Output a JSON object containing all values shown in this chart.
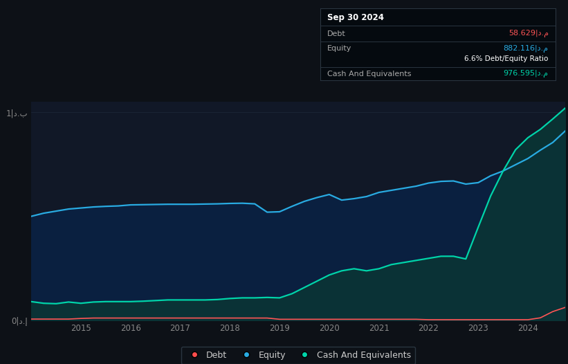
{
  "bg_color": "#0d1117",
  "plot_bg_color": "#111827",
  "grid_color": "#1e2a3a",
  "legend_items": [
    "Debt",
    "Equity",
    "Cash And Equivalents"
  ],
  "legend_colors": [
    "#ff4d4d",
    "#29abe2",
    "#00d4aa"
  ],
  "tooltip": {
    "date": "Sep 30 2024",
    "debt_label": "Debt",
    "debt_value": "58.629|د.م",
    "debt_color": "#ff5555",
    "equity_label": "Equity",
    "equity_value": "882.116|د.م",
    "equity_color": "#29abe2",
    "ratio_value": "6.6%",
    "ratio_label": " Debt/Equity Ratio",
    "cash_label": "Cash And Equivalents",
    "cash_value": "976.595|د.م",
    "cash_color": "#00d4aa"
  },
  "ylim": [
    0,
    1.05
  ],
  "ytick_vals": [
    0,
    1.0
  ],
  "ytick_labels": [
    "0|د.إ",
    "1|د.ب"
  ],
  "xticks": [
    2015,
    2016,
    2017,
    2018,
    2019,
    2020,
    2021,
    2022,
    2023,
    2024
  ],
  "xtick_labels": [
    "2015",
    "2016",
    "2017",
    "2018",
    "2019",
    "2020",
    "2021",
    "2022",
    "2023",
    "2024"
  ],
  "years": [
    2014.0,
    2014.25,
    2014.5,
    2014.75,
    2015.0,
    2015.25,
    2015.5,
    2015.75,
    2016.0,
    2016.25,
    2016.5,
    2016.75,
    2017.0,
    2017.25,
    2017.5,
    2017.75,
    2018.0,
    2018.25,
    2018.5,
    2018.75,
    2019.0,
    2019.25,
    2019.5,
    2019.75,
    2020.0,
    2020.25,
    2020.5,
    2020.75,
    2021.0,
    2021.25,
    2021.5,
    2021.75,
    2022.0,
    2022.25,
    2022.5,
    2022.75,
    2023.0,
    2023.25,
    2023.5,
    2023.75,
    2024.0,
    2024.25,
    2024.5,
    2024.75
  ],
  "equity": [
    0.5,
    0.515,
    0.525,
    0.535,
    0.54,
    0.545,
    0.548,
    0.55,
    0.555,
    0.556,
    0.557,
    0.558,
    0.558,
    0.558,
    0.559,
    0.56,
    0.562,
    0.563,
    0.56,
    0.52,
    0.522,
    0.548,
    0.572,
    0.59,
    0.605,
    0.578,
    0.585,
    0.595,
    0.615,
    0.625,
    0.635,
    0.645,
    0.66,
    0.668,
    0.67,
    0.655,
    0.662,
    0.695,
    0.718,
    0.748,
    0.778,
    0.818,
    0.855,
    0.91
  ],
  "cash": [
    0.09,
    0.082,
    0.08,
    0.088,
    0.082,
    0.088,
    0.09,
    0.09,
    0.09,
    0.092,
    0.095,
    0.098,
    0.098,
    0.098,
    0.098,
    0.1,
    0.105,
    0.108,
    0.108,
    0.11,
    0.108,
    0.128,
    0.158,
    0.188,
    0.218,
    0.238,
    0.248,
    0.238,
    0.248,
    0.268,
    0.278,
    0.288,
    0.298,
    0.308,
    0.308,
    0.295,
    0.448,
    0.598,
    0.718,
    0.82,
    0.878,
    0.918,
    0.968,
    1.02
  ],
  "debt": [
    0.006,
    0.006,
    0.006,
    0.006,
    0.009,
    0.011,
    0.011,
    0.011,
    0.011,
    0.011,
    0.011,
    0.011,
    0.011,
    0.011,
    0.011,
    0.011,
    0.011,
    0.011,
    0.011,
    0.011,
    0.005,
    0.005,
    0.005,
    0.005,
    0.005,
    0.005,
    0.005,
    0.005,
    0.005,
    0.005,
    0.005,
    0.005,
    0.003,
    0.003,
    0.003,
    0.003,
    0.003,
    0.003,
    0.003,
    0.003,
    0.003,
    0.012,
    0.042,
    0.062
  ],
  "equity_fill": "#0a2040",
  "equity_line": "#29abe2",
  "cash_fill": "#0a3535",
  "cash_line": "#00d4aa",
  "debt_line": "#ff5555"
}
